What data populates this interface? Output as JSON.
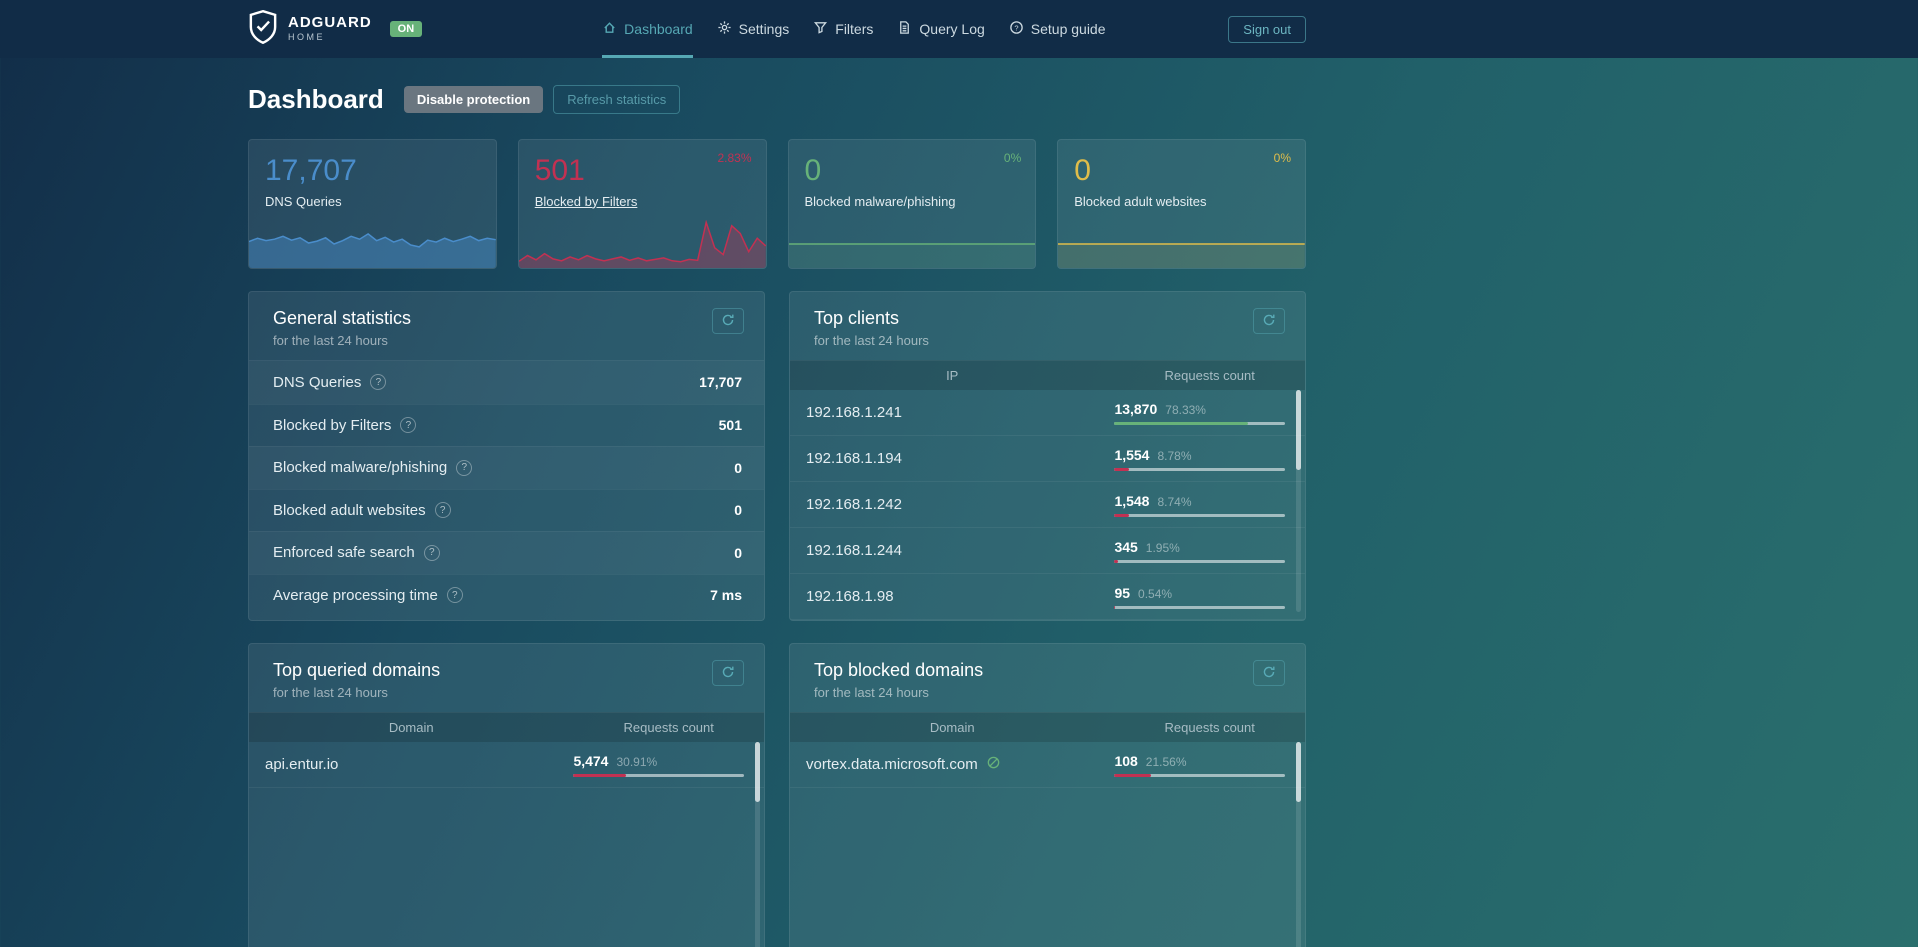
{
  "header": {
    "brand": {
      "name": "ADGUARD",
      "sub": "HOME",
      "status": "ON"
    },
    "nav": [
      {
        "label": "Dashboard"
      },
      {
        "label": "Settings"
      },
      {
        "label": "Filters"
      },
      {
        "label": "Query Log"
      },
      {
        "label": "Setup guide"
      }
    ],
    "sign_out": "Sign out"
  },
  "page": {
    "title": "Dashboard",
    "disable_protection": "Disable protection",
    "refresh_statistics": "Refresh statistics"
  },
  "stat_cards": [
    {
      "value": "17,707",
      "label": "DNS Queries",
      "color": "#4a8dcb",
      "sparkline": [
        0.55,
        0.62,
        0.57,
        0.6,
        0.66,
        0.58,
        0.63,
        0.52,
        0.56,
        0.63,
        0.5,
        0.57,
        0.66,
        0.6,
        0.71,
        0.57,
        0.64,
        0.54,
        0.6,
        0.48,
        0.44,
        0.58,
        0.54,
        0.62,
        0.55,
        0.6,
        0.66,
        0.57,
        0.62,
        0.59
      ]
    },
    {
      "value": "501",
      "label": "Blocked by Filters",
      "badge": "2.83%",
      "color": "#c23152",
      "sparkline": [
        0.14,
        0.26,
        0.17,
        0.3,
        0.19,
        0.15,
        0.23,
        0.17,
        0.26,
        0.19,
        0.15,
        0.19,
        0.23,
        0.16,
        0.21,
        0.15,
        0.18,
        0.21,
        0.15,
        0.13,
        0.18,
        0.16,
        0.95,
        0.42,
        0.28,
        0.88,
        0.72,
        0.34,
        0.62,
        0.46
      ]
    },
    {
      "value": "0",
      "label": "Blocked malware/phishing",
      "badge": "0%",
      "color": "#67b279",
      "sparkline": [
        0.5,
        0.5
      ]
    },
    {
      "value": "0",
      "label": "Blocked adult websites",
      "badge": "0%",
      "color": "#e0bd4a",
      "sparkline": [
        0.5,
        0.5
      ]
    }
  ],
  "general_statistics": {
    "title": "General statistics",
    "subtitle": "for the last 24 hours",
    "rows": [
      {
        "label": "DNS Queries",
        "value": "17,707"
      },
      {
        "label": "Blocked by Filters",
        "value": "501"
      },
      {
        "label": "Blocked malware/phishing",
        "value": "0"
      },
      {
        "label": "Blocked adult websites",
        "value": "0"
      },
      {
        "label": "Enforced safe search",
        "value": "0"
      },
      {
        "label": "Average processing time",
        "value": "7 ms"
      }
    ]
  },
  "top_clients": {
    "title": "Top clients",
    "subtitle": "for the last 24 hours",
    "columns": [
      "IP",
      "Requests count"
    ],
    "rows": [
      {
        "ip": "192.168.1.241",
        "count": "13,870",
        "pct": "78.33%",
        "bar_color": "#67b279"
      },
      {
        "ip": "192.168.1.194",
        "count": "1,554",
        "pct": "8.78%",
        "bar_color": "#c23152"
      },
      {
        "ip": "192.168.1.242",
        "count": "1,548",
        "pct": "8.74%",
        "bar_color": "#c23152"
      },
      {
        "ip": "192.168.1.244",
        "count": "345",
        "pct": "1.95%",
        "bar_color": "#c23152"
      },
      {
        "ip": "192.168.1.98",
        "count": "95",
        "pct": "0.54%",
        "bar_color": "#c23152"
      }
    ]
  },
  "top_queried_domains": {
    "title": "Top queried domains",
    "subtitle": "for the last 24 hours",
    "columns": [
      "Domain",
      "Requests count"
    ],
    "rows": [
      {
        "domain": "api.entur.io",
        "count": "5,474",
        "pct": "30.91%",
        "bar_color": "#c23152"
      }
    ]
  },
  "top_blocked_domains": {
    "title": "Top blocked domains",
    "subtitle": "for the last 24 hours",
    "columns": [
      "Domain",
      "Requests count"
    ],
    "rows": [
      {
        "domain": "vortex.data.microsoft.com",
        "count": "108",
        "pct": "21.56%",
        "bar_color": "#c23152",
        "tracker": true
      }
    ]
  }
}
